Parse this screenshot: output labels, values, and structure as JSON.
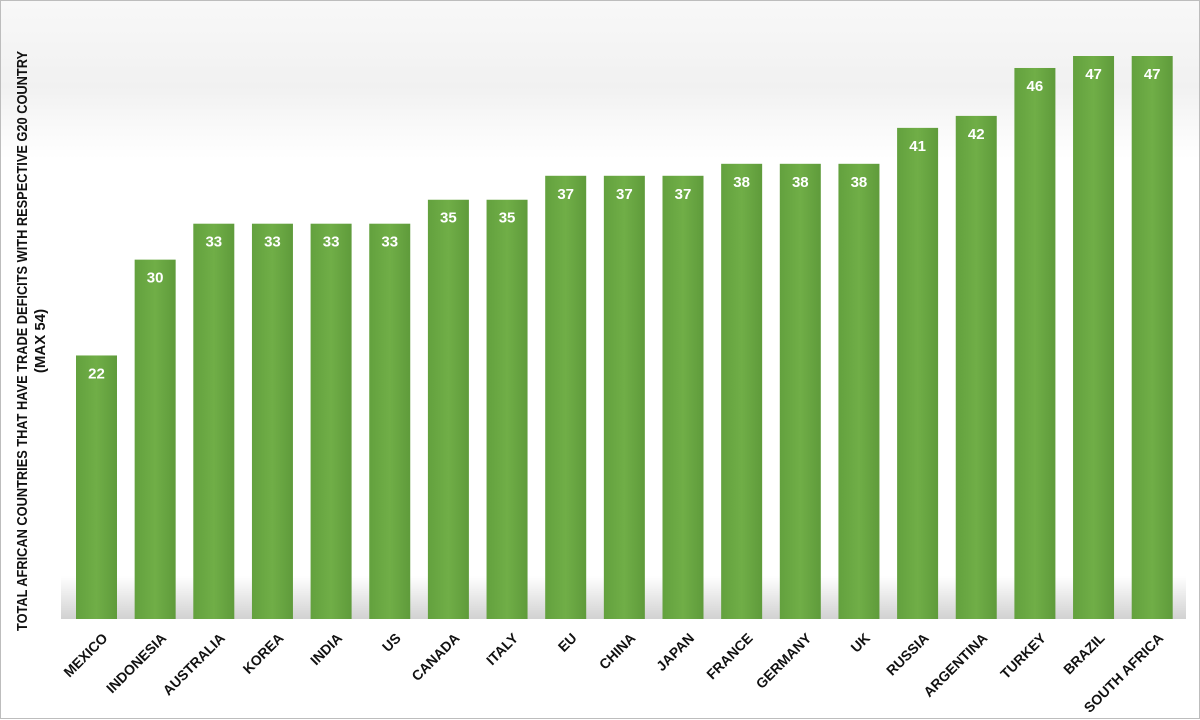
{
  "chart_data": {
    "type": "bar",
    "title": "",
    "ylabel_lines": [
      "TOTAL AFRICAN COUNTRIES THAT HAVE TRADE DEFICITS WITH  RESPECTIVE G20 COUNTRY",
      "(MAX 54)"
    ],
    "xlabel": "",
    "categories": [
      "MEXICO",
      "INDONESIA",
      "AUSTRALIA",
      "KOREA",
      "INDIA",
      "US",
      "CANADA",
      "ITALY",
      "EU",
      "CHINA",
      "JAPAN",
      "FRANCE",
      "GERMANY",
      "UK",
      "RUSSIA",
      "ARGENTINA",
      "TURKEY",
      "BRAZIL",
      "SOUTH AFRICA"
    ],
    "values": [
      22,
      30,
      33,
      33,
      33,
      33,
      35,
      35,
      37,
      37,
      37,
      38,
      38,
      38,
      41,
      42,
      46,
      47,
      47
    ],
    "ylim": [
      0,
      47
    ],
    "grid": false,
    "legend": "none",
    "data_labels": true,
    "colors": {
      "bar": "#6aa943",
      "bar_dark": "#5a9638",
      "label": "#ffffff"
    }
  }
}
